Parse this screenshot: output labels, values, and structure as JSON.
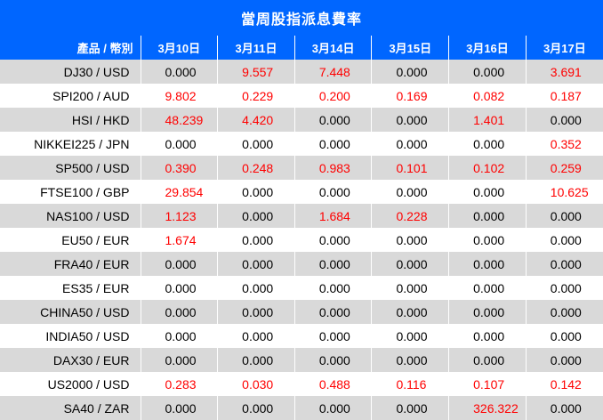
{
  "title": "當周股指派息費率",
  "headers": {
    "product": "產品 / 幣別",
    "dates": [
      "3月10日",
      "3月11日",
      "3月14日",
      "3月15日",
      "3月16日",
      "3月17日"
    ]
  },
  "colors": {
    "header_bg": "#0066ff",
    "row_shade": "#d9d9d9",
    "positive": "#ff0000",
    "zero": "#000000"
  },
  "rows": [
    {
      "product": "DJ30 / USD",
      "values": [
        "0.000",
        "9.557",
        "7.448",
        "0.000",
        "0.000",
        "3.691"
      ]
    },
    {
      "product": "SPI200 / AUD",
      "values": [
        "9.802",
        "0.229",
        "0.200",
        "0.169",
        "0.082",
        "0.187"
      ]
    },
    {
      "product": "HSI / HKD",
      "values": [
        "48.239",
        "4.420",
        "0.000",
        "0.000",
        "1.401",
        "0.000"
      ]
    },
    {
      "product": "NIKKEI225 / JPN",
      "values": [
        "0.000",
        "0.000",
        "0.000",
        "0.000",
        "0.000",
        "0.352"
      ]
    },
    {
      "product": "SP500 / USD",
      "values": [
        "0.390",
        "0.248",
        "0.983",
        "0.101",
        "0.102",
        "0.259"
      ]
    },
    {
      "product": "FTSE100 / GBP",
      "values": [
        "29.854",
        "0.000",
        "0.000",
        "0.000",
        "0.000",
        "10.625"
      ]
    },
    {
      "product": "NAS100 / USD",
      "values": [
        "1.123",
        "0.000",
        "1.684",
        "0.228",
        "0.000",
        "0.000"
      ]
    },
    {
      "product": "EU50 / EUR",
      "values": [
        "1.674",
        "0.000",
        "0.000",
        "0.000",
        "0.000",
        "0.000"
      ]
    },
    {
      "product": "FRA40 / EUR",
      "values": [
        "0.000",
        "0.000",
        "0.000",
        "0.000",
        "0.000",
        "0.000"
      ]
    },
    {
      "product": "ES35 / EUR",
      "values": [
        "0.000",
        "0.000",
        "0.000",
        "0.000",
        "0.000",
        "0.000"
      ]
    },
    {
      "product": "CHINA50 / USD",
      "values": [
        "0.000",
        "0.000",
        "0.000",
        "0.000",
        "0.000",
        "0.000"
      ]
    },
    {
      "product": "INDIA50 / USD",
      "values": [
        "0.000",
        "0.000",
        "0.000",
        "0.000",
        "0.000",
        "0.000"
      ]
    },
    {
      "product": "DAX30 / EUR",
      "values": [
        "0.000",
        "0.000",
        "0.000",
        "0.000",
        "0.000",
        "0.000"
      ]
    },
    {
      "product": "US2000 / USD",
      "values": [
        "0.283",
        "0.030",
        "0.488",
        "0.116",
        "0.107",
        "0.142"
      ]
    },
    {
      "product": "SA40 / ZAR",
      "values": [
        "0.000",
        "0.000",
        "0.000",
        "0.000",
        "326.322",
        "0.000"
      ]
    }
  ]
}
